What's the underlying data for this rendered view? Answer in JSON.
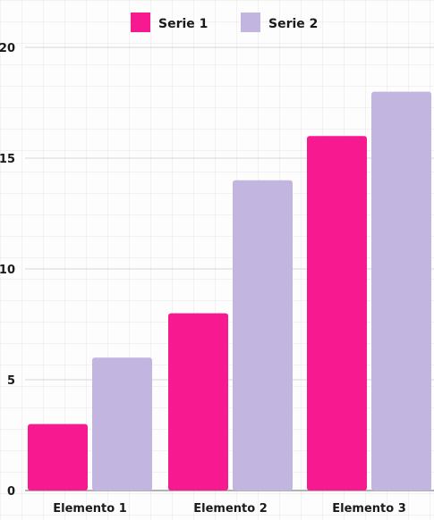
{
  "chart_data": {
    "type": "bar",
    "title": "",
    "xlabel": "",
    "ylabel": "",
    "categories": [
      "Elemento 1",
      "Elemento 2",
      "Elemento 3"
    ],
    "series": [
      {
        "name": "Serie 1",
        "values": [
          3,
          8,
          16
        ],
        "color": "#f7198f"
      },
      {
        "name": "Serie 2",
        "values": [
          6,
          14,
          18
        ],
        "color": "#c2b5e0"
      }
    ],
    "ylim": [
      0,
      20
    ],
    "yticks": [
      "0",
      "5",
      "10",
      "15",
      "20"
    ],
    "grid": true,
    "legend": "top"
  }
}
